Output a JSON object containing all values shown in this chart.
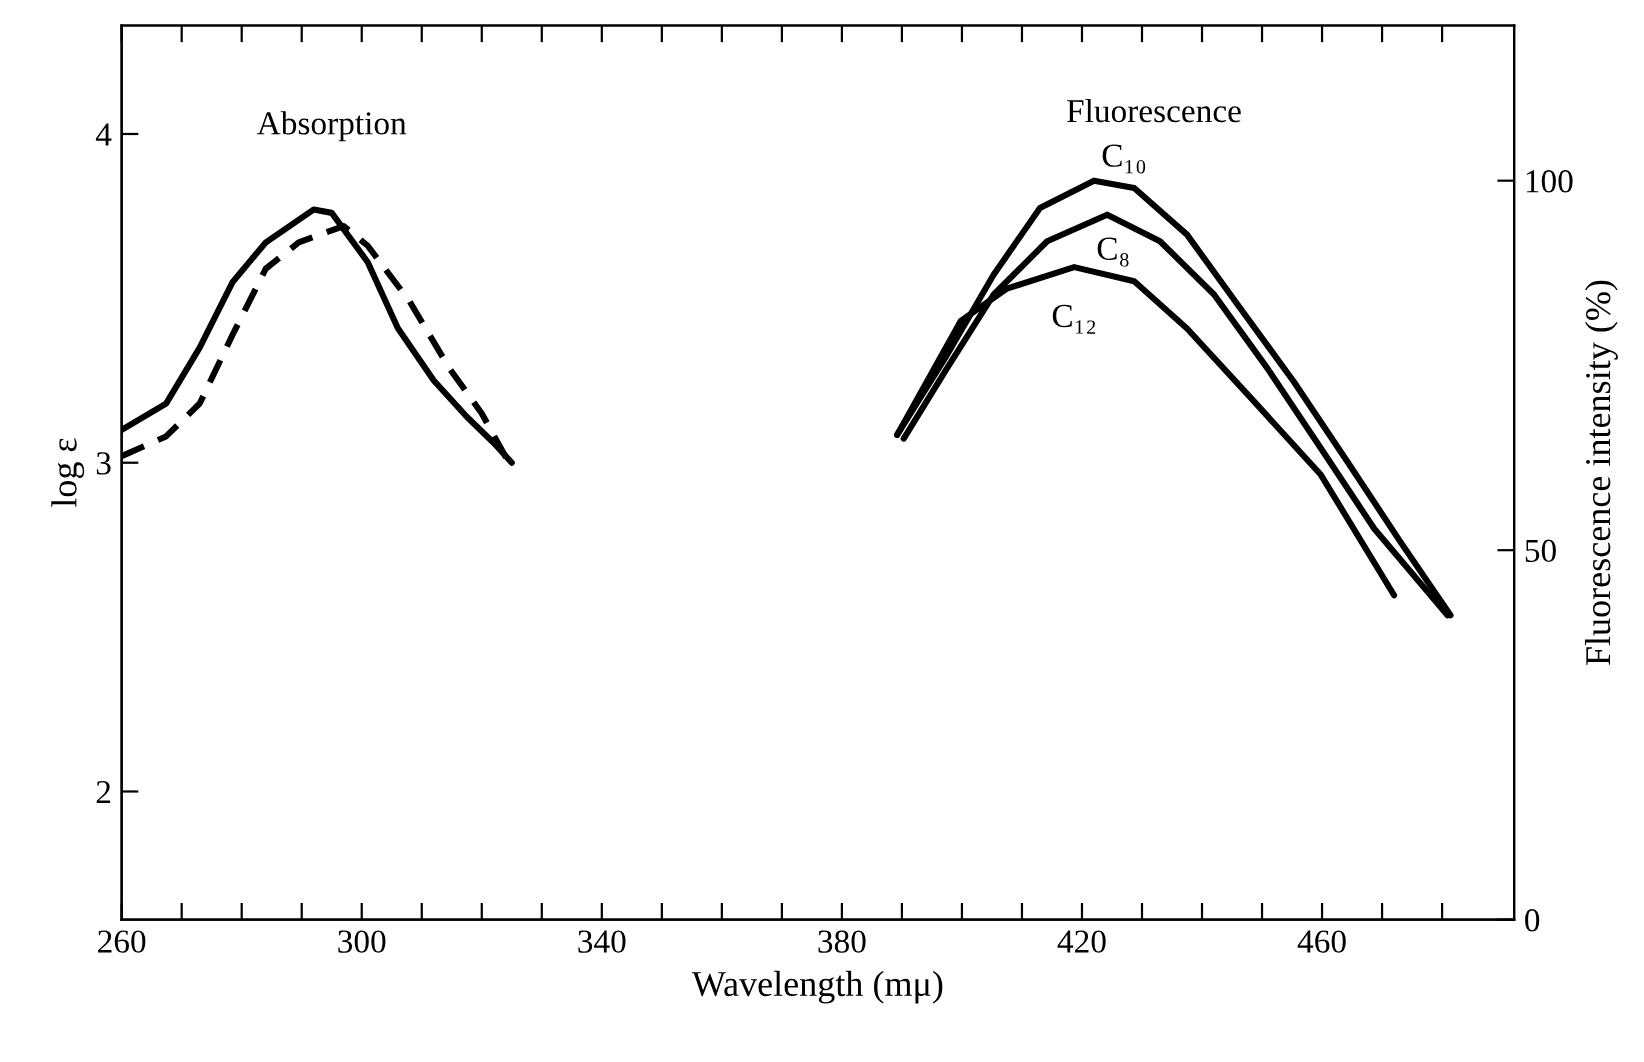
{
  "chart_data": {
    "type": "line",
    "xlabel": "Wavelength (mμ)",
    "ylabel": "log ε",
    "y2label": "Fluorescence intensity (%)",
    "xlim": [
      260,
      492
    ],
    "ylim": [
      1.61,
      4.33
    ],
    "y2lim": [
      0,
      121
    ],
    "xticks": [
      260,
      {
        "value": 270,
        "label": null
      },
      {
        "value": 280,
        "label": null
      },
      {
        "value": 290,
        "label": null
      },
      300,
      {
        "value": 310,
        "label": null
      },
      {
        "value": 320,
        "label": null
      },
      {
        "value": 330,
        "label": null
      },
      340,
      {
        "value": 350,
        "label": null
      },
      {
        "value": 360,
        "label": null
      },
      {
        "value": 370,
        "label": null
      },
      380,
      {
        "value": 390,
        "label": null
      },
      {
        "value": 400,
        "label": null
      },
      {
        "value": 410,
        "label": null
      },
      420,
      {
        "value": 430,
        "label": null
      },
      {
        "value": 440,
        "label": null
      },
      {
        "value": 450,
        "label": null
      },
      460,
      {
        "value": 470,
        "label": null
      },
      {
        "value": 480,
        "label": null
      }
    ],
    "yticks": [
      2,
      3,
      4
    ],
    "y2ticks": [
      0,
      50,
      100
    ],
    "grid": false,
    "legend": false,
    "series": [
      {
        "color": "#000000",
        "line_style": "solid",
        "x": [
          260,
          267.4,
          273,
          278.5,
          284,
          292,
          295,
          301,
          306,
          312,
          317.5,
          322,
          325
        ],
        "values": [
          3.1,
          3.18,
          3.35,
          3.55,
          3.67,
          3.77,
          3.76,
          3.61,
          3.41,
          3.25,
          3.14,
          3.06,
          3.0
        ]
      },
      {
        "color": "#000000",
        "line_style": "dashed",
        "x": [
          260,
          267.4,
          273,
          278.5,
          284,
          289.5,
          297,
          301,
          308,
          314.5,
          320,
          324.5
        ],
        "values": [
          3.02,
          3.08,
          3.18,
          3.39,
          3.59,
          3.67,
          3.72,
          3.66,
          3.49,
          3.29,
          3.15,
          3.0
        ]
      },
      {
        "name": "C₁₀",
        "axis": "y2",
        "color": "#000000",
        "line_style": "solid",
        "x": [
          389.2,
          397.5,
          405.3,
          413,
          422,
          428.7,
          437.5,
          446.4,
          455.3,
          464.2,
          473,
          481.4
        ],
        "values": [
          65.6,
          76.4,
          87.3,
          96.3,
          100,
          99,
          92.7,
          82.7,
          72.8,
          62,
          51.2,
          41.2
        ]
      },
      {
        "name": "C₈",
        "axis": "y2",
        "color": "#000000",
        "line_style": "solid",
        "x": [
          390.3,
          397.5,
          405.3,
          414.2,
          424.2,
          433,
          442,
          450.9,
          459.8,
          468.7,
          480.9
        ],
        "values": [
          65.1,
          74.6,
          84.6,
          91.8,
          95.4,
          91.8,
          84.6,
          74.6,
          63.8,
          52.9,
          41.2
        ]
      },
      {
        "name": "C₁₂",
        "axis": "y2",
        "color": "#000000",
        "line_style": "solid",
        "x": [
          389.2,
          399.8,
          407.5,
          418.7,
          428.7,
          437.5,
          448.7,
          459.8,
          472
        ],
        "values": [
          65.6,
          81,
          85.4,
          88.3,
          86.4,
          80,
          70.1,
          60.2,
          43.9
        ]
      }
    ],
    "annotations": [
      "Absorption",
      "Fluorescence"
    ]
  }
}
